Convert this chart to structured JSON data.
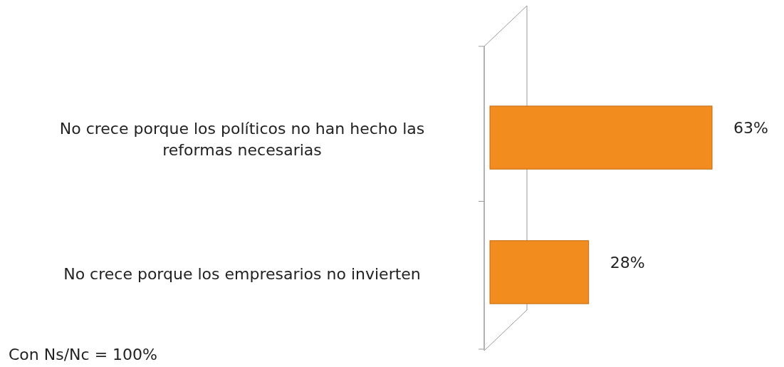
{
  "chart_data": {
    "type": "bar",
    "orientation": "horizontal",
    "categories": [
      "No crece porque los políticos no han hecho las reformas necesarias",
      "No crece porque los empresarios no invierten"
    ],
    "values": [
      63,
      28
    ],
    "value_labels": [
      "63%",
      "28%"
    ],
    "color": "#f28c1e",
    "annotations": [
      "Con Ns/Nc = 100%"
    ]
  }
}
